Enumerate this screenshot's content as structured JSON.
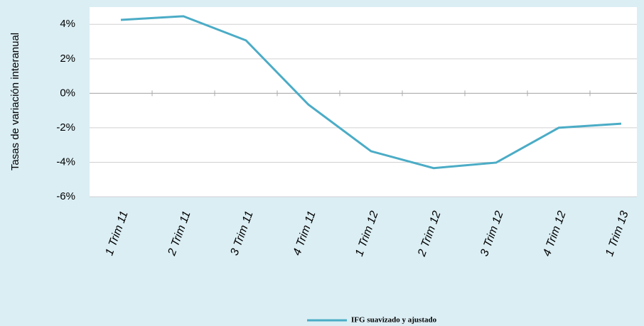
{
  "chart_data": {
    "type": "line",
    "y_label": "Tasas de variación interanual",
    "categories": [
      "1 Trim 11",
      "2 Trim 11",
      "3 Trim 11",
      "4 Trim 11",
      "1 Trim 12",
      "2 Trim 12",
      "3 Trim 12",
      "4 Trim 12",
      "1 Trim 13"
    ],
    "series": [
      {
        "name": "IFG suavizado y ajustado",
        "color": "#4bacc6",
        "values": [
          4.26,
          4.47,
          3.07,
          -0.66,
          -3.36,
          -4.34,
          -4.02,
          -2.0,
          -1.76
        ]
      }
    ],
    "ylim": [
      -6,
      5
    ],
    "yticks": [
      {
        "value": -6,
        "label": "-6%"
      },
      {
        "value": -4,
        "label": "-4%"
      },
      {
        "value": -2,
        "label": "-2%"
      },
      {
        "value": 0,
        "label": "0%"
      },
      {
        "value": 2,
        "label": "2%"
      },
      {
        "value": 4,
        "label": "4%"
      }
    ],
    "grid": true
  }
}
